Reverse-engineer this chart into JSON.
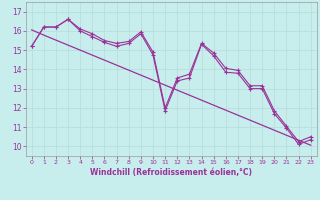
{
  "xlabel": "Windchill (Refroidissement éolien,°C)",
  "xlim": [
    -0.5,
    23.5
  ],
  "ylim": [
    9.5,
    17.5
  ],
  "yticks": [
    10,
    11,
    12,
    13,
    14,
    15,
    16,
    17
  ],
  "xticks": [
    0,
    1,
    2,
    3,
    4,
    5,
    6,
    7,
    8,
    9,
    10,
    11,
    12,
    13,
    14,
    15,
    16,
    17,
    18,
    19,
    20,
    21,
    22,
    23
  ],
  "bg_color": "#c8eded",
  "grid_color": "#aadddd",
  "line_color": "#993399",
  "line1": [
    15.2,
    16.2,
    16.2,
    16.6,
    16.1,
    15.85,
    15.5,
    15.35,
    15.45,
    15.95,
    14.9,
    12.0,
    13.55,
    13.75,
    15.35,
    14.85,
    14.05,
    13.95,
    13.15,
    13.15,
    11.85,
    11.05,
    10.25,
    10.5
  ],
  "line2": [
    15.2,
    16.2,
    16.2,
    16.6,
    16.0,
    15.7,
    15.4,
    15.2,
    15.35,
    15.85,
    14.75,
    11.85,
    13.4,
    13.55,
    15.3,
    14.7,
    13.85,
    13.8,
    13.0,
    13.0,
    11.7,
    10.95,
    10.1,
    10.35
  ],
  "regression": [
    16.05,
    15.78,
    15.52,
    15.26,
    15.0,
    14.74,
    14.48,
    14.22,
    13.96,
    13.7,
    13.44,
    13.18,
    12.92,
    12.66,
    12.4,
    12.14,
    11.88,
    11.62,
    11.36,
    11.1,
    10.84,
    10.58,
    10.32,
    10.06
  ]
}
